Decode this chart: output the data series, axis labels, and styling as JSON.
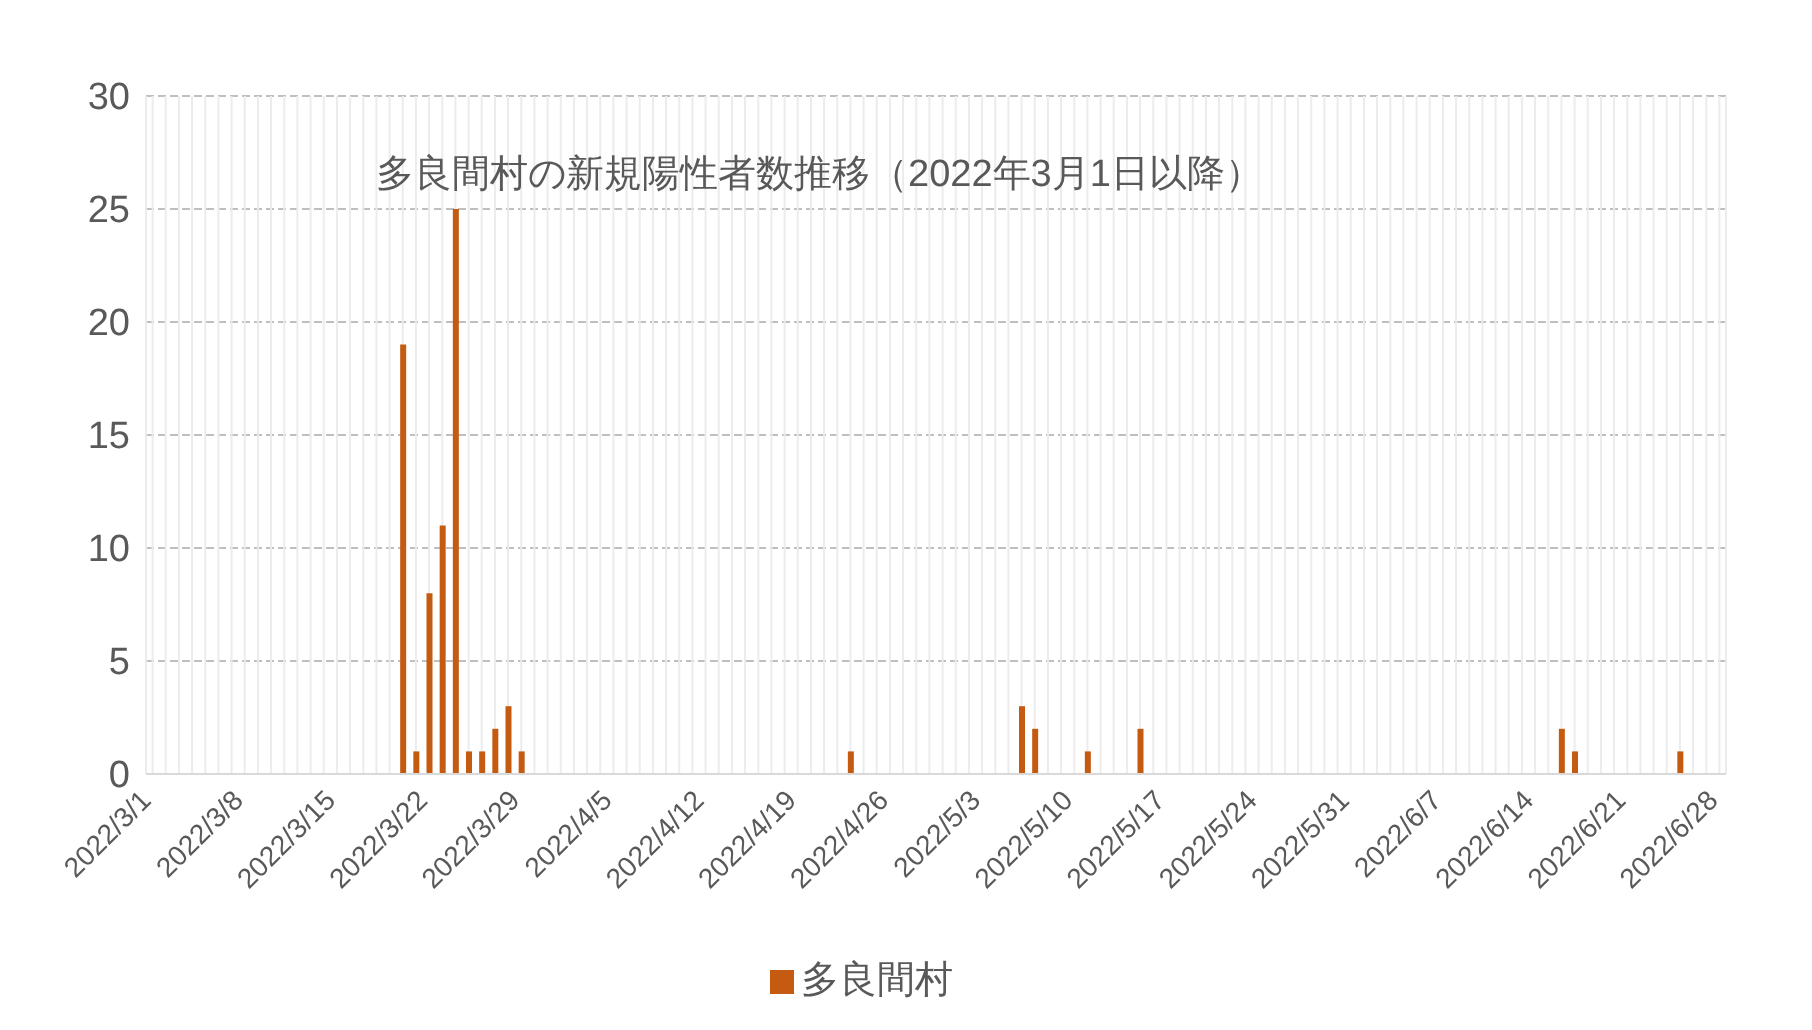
{
  "chart_data": {
    "type": "bar",
    "title": "多良間村の新規陽性者数推移（2022年3月1日以降）",
    "categories": [
      "2022/3/1",
      null,
      null,
      null,
      null,
      null,
      null,
      "2022/3/8",
      null,
      null,
      null,
      null,
      null,
      null,
      "2022/3/15",
      null,
      null,
      null,
      null,
      null,
      null,
      "2022/3/22",
      null,
      null,
      null,
      null,
      null,
      null,
      "2022/3/29",
      null,
      null,
      null,
      null,
      null,
      null,
      "2022/4/5",
      null,
      null,
      null,
      null,
      null,
      null,
      "2022/4/12",
      null,
      null,
      null,
      null,
      null,
      null,
      "2022/4/19",
      null,
      null,
      null,
      null,
      null,
      null,
      "2022/4/26",
      null,
      null,
      null,
      null,
      null,
      null,
      "2022/5/3",
      null,
      null,
      null,
      null,
      null,
      null,
      "2022/5/10",
      null,
      null,
      null,
      null,
      null,
      null,
      "2022/5/17",
      null,
      null,
      null,
      null,
      null,
      null,
      "2022/5/24",
      null,
      null,
      null,
      null,
      null,
      null,
      "2022/5/31",
      null,
      null,
      null,
      null,
      null,
      null,
      "2022/6/7",
      null,
      null,
      null,
      null,
      null,
      null,
      "2022/6/14",
      null,
      null,
      null,
      null,
      null,
      null,
      "2022/6/21",
      null,
      null,
      null,
      null,
      null,
      null,
      "2022/6/28"
    ],
    "series": [
      {
        "name": "多良間村",
        "color": "#c55a11",
        "values": [
          0,
          0,
          0,
          0,
          0,
          0,
          0,
          0,
          0,
          0,
          0,
          0,
          0,
          0,
          0,
          0,
          0,
          0,
          0,
          19,
          1,
          8,
          11,
          25,
          1,
          1,
          2,
          3,
          1,
          0,
          0,
          0,
          0,
          0,
          0,
          0,
          0,
          0,
          0,
          0,
          0,
          0,
          0,
          0,
          0,
          0,
          0,
          0,
          0,
          0,
          0,
          0,
          0,
          1,
          0,
          0,
          0,
          0,
          0,
          0,
          0,
          0,
          0,
          0,
          0,
          0,
          3,
          2,
          0,
          0,
          0,
          1,
          0,
          0,
          0,
          2,
          0,
          0,
          0,
          0,
          0,
          0,
          0,
          0,
          0,
          0,
          0,
          0,
          0,
          0,
          0,
          0,
          0,
          0,
          0,
          0,
          0,
          0,
          0,
          0,
          0,
          0,
          0,
          0,
          0,
          0,
          0,
          2,
          1,
          0,
          0,
          0,
          0,
          0,
          0,
          0,
          1,
          0,
          0,
          0
        ]
      }
    ],
    "ylim": [
      0,
      30
    ],
    "yticks": [
      0,
      5,
      10,
      15,
      20,
      25,
      30
    ],
    "grid": true,
    "legend": "bottom"
  }
}
